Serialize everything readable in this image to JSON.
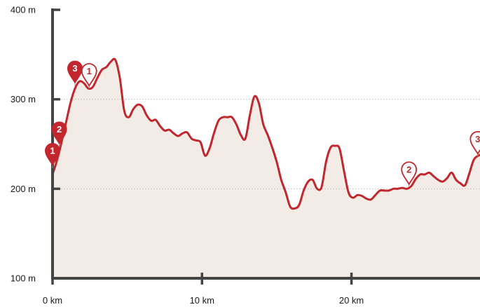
{
  "colors": {
    "line": "#c1272d",
    "fill": "#f3ebe6",
    "axis": "#444444",
    "grid": "#bdbdbd",
    "marker": "#c1272d",
    "marker_outline_fill": "#ffffff"
  },
  "chart_data": {
    "type": "area",
    "title": "",
    "xlabel": "",
    "ylabel": "",
    "xlim": [
      0,
      28.6
    ],
    "ylim": [
      100,
      400
    ],
    "x_ticks": [
      {
        "value": 0,
        "label": "0 km"
      },
      {
        "value": 10,
        "label": "10 km"
      },
      {
        "value": 20,
        "label": "20 km"
      }
    ],
    "y_ticks": [
      {
        "value": 400,
        "label": "400 m"
      },
      {
        "value": 300,
        "label": "300 m"
      },
      {
        "value": 200,
        "label": "200 m"
      },
      {
        "value": 100,
        "label": "100 m"
      }
    ],
    "grid": {
      "y_values": [
        300,
        200
      ],
      "style": "dotted"
    },
    "series": [
      {
        "x": [
          0,
          0.3,
          0.6,
          0.9,
          1.2,
          1.5,
          1.8,
          2.1,
          2.4,
          2.7,
          3.0,
          3.3,
          3.6,
          3.9,
          4.2,
          4.5,
          4.8,
          5.1,
          5.4,
          5.7,
          6.0,
          6.3,
          6.6,
          6.9,
          7.2,
          7.5,
          7.8,
          8.1,
          8.4,
          8.7,
          9.0,
          9.3,
          9.6,
          9.9,
          10.2,
          10.5,
          10.8,
          11.1,
          11.4,
          11.7,
          12.0,
          12.3,
          12.6,
          12.9,
          13.2,
          13.5,
          13.8,
          14.1,
          14.4,
          14.7,
          15.0,
          15.3,
          15.6,
          15.9,
          16.2,
          16.5,
          16.8,
          17.1,
          17.4,
          17.7,
          18.0,
          18.3,
          18.6,
          18.9,
          19.2,
          19.5,
          19.8,
          20.1,
          20.4,
          20.7,
          21.0,
          21.3,
          21.6,
          21.9,
          22.2,
          22.5,
          22.8,
          23.1,
          23.4,
          23.7,
          24.0,
          24.3,
          24.6,
          24.9,
          25.2,
          25.5,
          25.8,
          26.1,
          26.4,
          26.7,
          27.0,
          27.3,
          27.6,
          27.9,
          28.2,
          28.6
        ],
        "y": [
          216,
          232,
          252,
          274,
          296,
          312,
          320,
          318,
          312,
          314,
          324,
          333,
          336,
          342,
          344,
          324,
          287,
          280,
          289,
          294,
          292,
          282,
          276,
          277,
          270,
          265,
          266,
          262,
          259,
          262,
          263,
          256,
          254,
          252,
          237,
          245,
          262,
          276,
          280,
          280,
          280,
          272,
          260,
          256,
          282,
          303,
          296,
          272,
          260,
          246,
          230,
          210,
          196,
          180,
          178,
          182,
          198,
          208,
          210,
          200,
          202,
          230,
          246,
          248,
          245,
          220,
          196,
          190,
          193,
          192,
          189,
          188,
          193,
          198,
          198,
          198,
          200,
          200,
          201,
          200,
          203,
          211,
          216,
          216,
          218,
          214,
          210,
          208,
          212,
          218,
          210,
          206,
          204,
          218,
          233,
          238
        ]
      }
    ],
    "markers": [
      {
        "label": "1",
        "style": "filled",
        "x": 0.0,
        "y": 223
      },
      {
        "label": "2",
        "style": "filled",
        "x": 0.45,
        "y": 247
      },
      {
        "label": "3",
        "style": "filled",
        "x": 1.5,
        "y": 315
      },
      {
        "label": "1",
        "style": "outline",
        "x": 2.45,
        "y": 312
      },
      {
        "label": "2",
        "style": "outline",
        "x": 23.85,
        "y": 202
      },
      {
        "label": "3",
        "style": "outline",
        "x": 28.45,
        "y": 236
      }
    ]
  }
}
